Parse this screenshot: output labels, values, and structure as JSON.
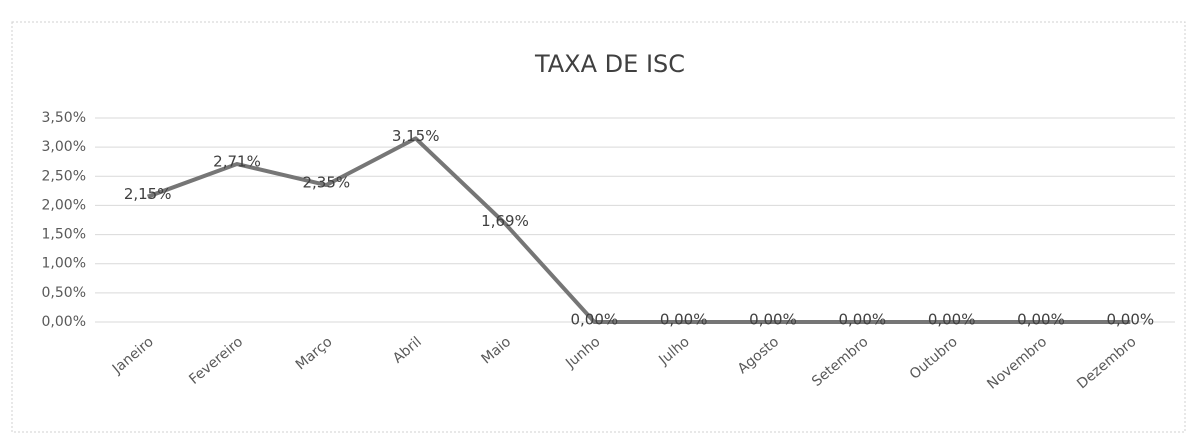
{
  "chart_data": {
    "type": "line",
    "title": "TAXA DE ISC",
    "categories": [
      "Janeiro",
      "Fevereiro",
      "Março",
      "Abril",
      "Maio",
      "Junho",
      "Julho",
      "Agosto",
      "Setembro",
      "Outubro",
      "Novembro",
      "Dezembro"
    ],
    "series": [
      {
        "name": "TAXA DE ISC",
        "color": "#767676",
        "values": [
          2.15,
          2.71,
          2.35,
          3.15,
          1.69,
          0,
          0,
          0,
          0,
          0,
          0,
          0
        ],
        "value_labels": [
          "2,15%",
          "2,71%",
          "2,35%",
          "3,15%",
          "1,69%",
          "0,00%",
          "0,00%",
          "0,00%",
          "0,00%",
          "0,00%",
          "0,00%",
          "0,00%"
        ]
      }
    ],
    "ylim": [
      0,
      3.5
    ],
    "yticks": [
      {
        "value": 0,
        "label": "0,00%"
      },
      {
        "value": 0.5,
        "label": "0,50%"
      },
      {
        "value": 1,
        "label": "1,00%"
      },
      {
        "value": 1.5,
        "label": "1,50%"
      },
      {
        "value": 2,
        "label": "2,00%"
      },
      {
        "value": 2.5,
        "label": "2,50%"
      },
      {
        "value": 3,
        "label": "3,00%"
      },
      {
        "value": 3.5,
        "label": "3,50%"
      }
    ],
    "grid": true
  }
}
